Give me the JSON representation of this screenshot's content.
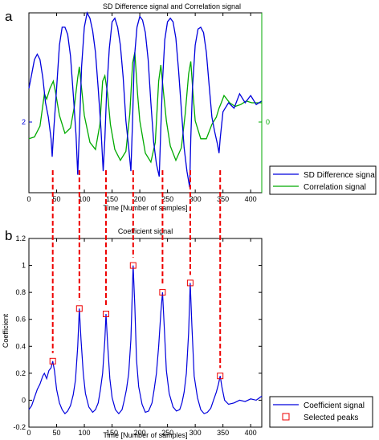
{
  "chart_data": [
    {
      "type": "line",
      "panel_label": "a",
      "title": "SD Difference signal and Correlation signal",
      "xlabel": "Time [Number of samples]",
      "ylabel": "",
      "xlim": [
        0,
        420
      ],
      "xticks": [
        0,
        50,
        100,
        150,
        200,
        250,
        300,
        350,
        400
      ],
      "ytick_left": {
        "value": "2",
        "frac": 0.5
      },
      "ytick_right": {
        "value": "0",
        "frac": 0.5
      },
      "legend_position": "bottom-right",
      "series": [
        {
          "name": "SD Difference signal",
          "color": "#0000dd",
          "x": [
            0,
            5,
            10,
            15,
            20,
            25,
            30,
            35,
            40,
            42,
            45,
            50,
            55,
            60,
            65,
            70,
            75,
            80,
            85,
            88,
            91,
            95,
            100,
            105,
            110,
            115,
            120,
            125,
            130,
            134,
            137,
            140,
            145,
            150,
            155,
            160,
            165,
            170,
            175,
            180,
            184,
            187,
            190,
            195,
            200,
            205,
            210,
            215,
            220,
            225,
            230,
            235,
            238,
            241,
            245,
            250,
            255,
            260,
            265,
            270,
            275,
            280,
            285,
            290,
            292,
            295,
            300,
            305,
            310,
            315,
            320,
            325,
            330,
            335,
            340,
            343,
            345,
            350,
            360,
            370,
            380,
            390,
            400,
            410,
            420
          ],
          "y": [
            0.58,
            0.66,
            0.74,
            0.77,
            0.74,
            0.64,
            0.5,
            0.42,
            0.3,
            0.2,
            0.36,
            0.58,
            0.82,
            0.92,
            0.92,
            0.88,
            0.76,
            0.55,
            0.32,
            0.1,
            0.34,
            0.7,
            0.92,
            1.0,
            0.97,
            0.9,
            0.78,
            0.58,
            0.35,
            0.12,
            0.3,
            0.55,
            0.8,
            0.95,
            0.97,
            0.92,
            0.82,
            0.64,
            0.4,
            0.25,
            0.12,
            0.4,
            0.74,
            0.92,
            0.98,
            0.96,
            0.89,
            0.74,
            0.5,
            0.28,
            0.16,
            0.09,
            0.36,
            0.62,
            0.85,
            0.95,
            0.97,
            0.95,
            0.86,
            0.68,
            0.46,
            0.25,
            0.12,
            0.03,
            0.3,
            0.58,
            0.82,
            0.91,
            0.92,
            0.89,
            0.78,
            0.6,
            0.42,
            0.34,
            0.27,
            0.22,
            0.3,
            0.45,
            0.5,
            0.47,
            0.55,
            0.5,
            0.54,
            0.49,
            0.51
          ]
        },
        {
          "name": "Correlation signal",
          "color": "#00aa00",
          "x": [
            0,
            10,
            20,
            28,
            32,
            38,
            44,
            48,
            55,
            65,
            75,
            82,
            88,
            91,
            96,
            100,
            110,
            120,
            128,
            133,
            137,
            142,
            147,
            155,
            165,
            175,
            182,
            187,
            191,
            196,
            200,
            210,
            220,
            228,
            234,
            238,
            243,
            248,
            255,
            265,
            275,
            282,
            288,
            292,
            296,
            300,
            310,
            320,
            330,
            338,
            343,
            347,
            352,
            362,
            372,
            382,
            392,
            402,
            412,
            420
          ],
          "y": [
            0.3,
            0.31,
            0.37,
            0.55,
            0.52,
            0.58,
            0.62,
            0.56,
            0.43,
            0.33,
            0.36,
            0.48,
            0.64,
            0.7,
            0.55,
            0.43,
            0.28,
            0.24,
            0.38,
            0.62,
            0.65,
            0.55,
            0.38,
            0.24,
            0.18,
            0.23,
            0.44,
            0.72,
            0.78,
            0.55,
            0.4,
            0.22,
            0.17,
            0.28,
            0.62,
            0.71,
            0.55,
            0.4,
            0.26,
            0.18,
            0.25,
            0.44,
            0.66,
            0.73,
            0.55,
            0.4,
            0.3,
            0.3,
            0.38,
            0.42,
            0.47,
            0.5,
            0.54,
            0.5,
            0.48,
            0.49,
            0.51,
            0.5,
            0.5,
            0.5
          ]
        }
      ]
    },
    {
      "type": "line",
      "panel_label": "b",
      "title": "Coefficient signal",
      "xlabel": "Time [Number of samples]",
      "ylabel": "Coefficient",
      "xlim": [
        0,
        420
      ],
      "ylim": [
        -0.2,
        1.2
      ],
      "xticks": [
        0,
        50,
        100,
        150,
        200,
        250,
        300,
        350,
        400
      ],
      "yticks": [
        -0.2,
        0,
        0.2,
        0.4,
        0.6,
        0.8,
        1,
        1.2
      ],
      "legend_position": "bottom-right",
      "series": [
        {
          "name": "Coefficient signal",
          "color": "#0000dd",
          "x": [
            0,
            5,
            10,
            15,
            20,
            25,
            28,
            32,
            36,
            40,
            43,
            46,
            50,
            55,
            60,
            65,
            70,
            75,
            80,
            84,
            88,
            91,
            94,
            98,
            102,
            108,
            115,
            120,
            125,
            129,
            133,
            137,
            139,
            142,
            146,
            150,
            156,
            162,
            168,
            172,
            176,
            180,
            184,
            188,
            191,
            194,
            198,
            204,
            210,
            216,
            222,
            226,
            230,
            234,
            238,
            241,
            244,
            248,
            253,
            260,
            266,
            272,
            276,
            280,
            284,
            288,
            291,
            294,
            298,
            304,
            310,
            316,
            322,
            328,
            333,
            338,
            342,
            345,
            348,
            353,
            360,
            370,
            380,
            390,
            400,
            410,
            420
          ],
          "y": [
            -0.07,
            -0.04,
            0.02,
            0.08,
            0.12,
            0.18,
            0.2,
            0.16,
            0.22,
            0.24,
            0.29,
            0.22,
            0.08,
            -0.02,
            -0.07,
            -0.1,
            -0.08,
            -0.04,
            0.04,
            0.15,
            0.4,
            0.68,
            0.45,
            0.2,
            0.05,
            -0.05,
            -0.09,
            -0.07,
            -0.02,
            0.08,
            0.2,
            0.45,
            0.64,
            0.42,
            0.16,
            0.02,
            -0.07,
            -0.1,
            -0.07,
            0.0,
            0.08,
            0.2,
            0.45,
            1.0,
            0.7,
            0.3,
            0.1,
            -0.03,
            -0.09,
            -0.08,
            -0.02,
            0.08,
            0.2,
            0.4,
            0.65,
            0.8,
            0.55,
            0.22,
            0.05,
            -0.05,
            -0.08,
            -0.07,
            -0.02,
            0.06,
            0.2,
            0.5,
            0.87,
            0.55,
            0.18,
            0.02,
            -0.07,
            -0.1,
            -0.09,
            -0.06,
            0.0,
            0.06,
            0.12,
            0.18,
            0.1,
            0.0,
            -0.03,
            -0.02,
            0.0,
            -0.01,
            0.01,
            0.0,
            0.03
          ]
        },
        {
          "name": "Selected peaks",
          "color": "#ee0000",
          "marker": "square",
          "x": [
            43,
            91,
            139,
            188,
            241,
            291,
            345
          ],
          "y": [
            0.29,
            0.68,
            0.64,
            1.0,
            0.8,
            0.87,
            0.18
          ]
        }
      ]
    }
  ]
}
